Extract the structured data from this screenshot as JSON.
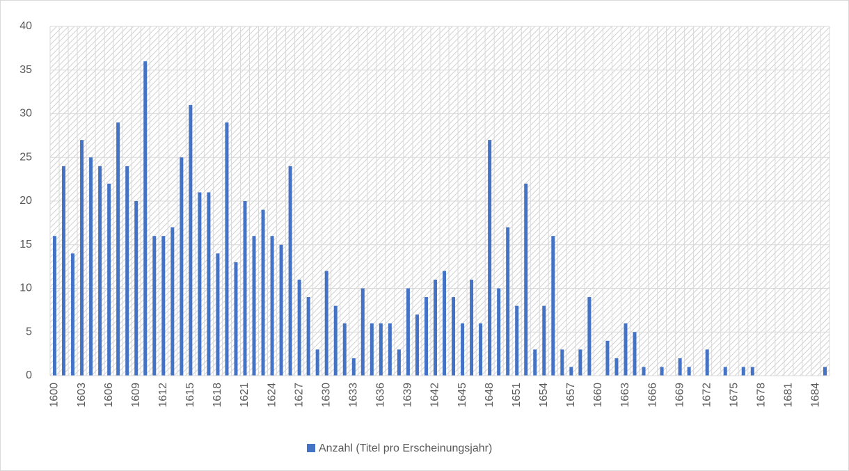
{
  "chart_data": {
    "type": "bar",
    "categories": [
      "1600",
      null,
      null,
      "1603",
      null,
      null,
      "1606",
      null,
      null,
      "1609",
      null,
      null,
      "1612",
      null,
      null,
      "1615",
      null,
      null,
      "1618",
      null,
      null,
      "1621",
      null,
      null,
      "1624",
      null,
      null,
      "1627",
      null,
      null,
      "1630",
      null,
      null,
      "1633",
      null,
      null,
      "1636",
      null,
      null,
      "1639",
      null,
      null,
      "1642",
      null,
      null,
      "1645",
      null,
      null,
      "1648",
      null,
      null,
      "1651",
      null,
      null,
      "1654",
      null,
      null,
      "1657",
      null,
      null,
      "1660",
      null,
      null,
      "1663",
      null,
      null,
      "1666",
      null,
      null,
      "1669",
      null,
      null,
      "1672",
      null,
      null,
      "1675",
      null,
      null,
      "1678",
      null,
      null,
      "1681",
      null,
      null,
      "1684",
      null
    ],
    "series": [
      {
        "name": "Anzahl (Titel pro Erscheinungsjahr)",
        "color": "#4472c4",
        "values": [
          16,
          24,
          14,
          27,
          25,
          24,
          22,
          29,
          24,
          20,
          36,
          16,
          16,
          17,
          25,
          31,
          21,
          21,
          14,
          29,
          13,
          20,
          16,
          19,
          16,
          15,
          24,
          11,
          9,
          3,
          12,
          8,
          6,
          2,
          10,
          6,
          6,
          6,
          3,
          10,
          7,
          9,
          11,
          12,
          9,
          6,
          11,
          6,
          27,
          10,
          17,
          8,
          22,
          3,
          8,
          16,
          3,
          1,
          3,
          9,
          0,
          4,
          2,
          6,
          5,
          1,
          0,
          1,
          0,
          2,
          1,
          0,
          3,
          0,
          1,
          0,
          1,
          1,
          0,
          0,
          0,
          0,
          0,
          0,
          0,
          1
        ]
      }
    ],
    "ylim": [
      0,
      40
    ],
    "yticks": [
      0,
      5,
      10,
      15,
      20,
      25,
      30,
      35,
      40
    ],
    "grid": true,
    "legend": "bottom"
  }
}
